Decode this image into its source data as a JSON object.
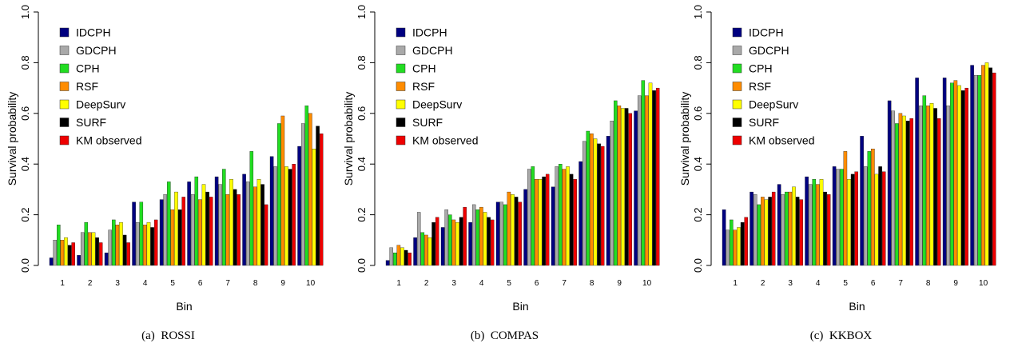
{
  "colors": {
    "IDCPH": "#000080",
    "GDCPH": "#a9a9a9",
    "CPH": "#22dd22",
    "RSF": "#ff8c00",
    "DeepSurv": "#ffff00",
    "SURF": "#000000",
    "KM observed": "#ee0000"
  },
  "chart_data": [
    {
      "type": "bar",
      "caption_label": "(a)",
      "caption_title": "ROSSI",
      "xlabel": "Bin",
      "ylabel": "Survival probability",
      "ylim": [
        0,
        1
      ],
      "yticks": [
        "0.0",
        "0.2",
        "0.4",
        "0.6",
        "0.8",
        "1.0"
      ],
      "legend_position": "top-left",
      "categories": [
        "1",
        "2",
        "3",
        "4",
        "5",
        "6",
        "7",
        "8",
        "9",
        "10"
      ],
      "series": [
        {
          "name": "IDCPH",
          "values": [
            0.03,
            0.04,
            0.05,
            0.25,
            0.26,
            0.33,
            0.35,
            0.36,
            0.43,
            0.47
          ]
        },
        {
          "name": "GDCPH",
          "values": [
            0.1,
            0.13,
            0.14,
            0.17,
            0.28,
            0.28,
            0.32,
            0.33,
            0.39,
            0.56
          ]
        },
        {
          "name": "CPH",
          "values": [
            0.16,
            0.17,
            0.18,
            0.25,
            0.33,
            0.35,
            0.38,
            0.45,
            0.56,
            0.63
          ]
        },
        {
          "name": "RSF",
          "values": [
            0.1,
            0.13,
            0.16,
            0.16,
            0.22,
            0.26,
            0.28,
            0.31,
            0.59,
            0.6
          ]
        },
        {
          "name": "DeepSurv",
          "values": [
            0.11,
            0.13,
            0.17,
            0.17,
            0.29,
            0.32,
            0.34,
            0.34,
            0.39,
            0.46
          ]
        },
        {
          "name": "SURF",
          "values": [
            0.08,
            0.11,
            0.12,
            0.15,
            0.22,
            0.29,
            0.3,
            0.32,
            0.38,
            0.55
          ]
        },
        {
          "name": "KM observed",
          "values": [
            0.09,
            0.09,
            0.09,
            0.18,
            0.27,
            0.27,
            0.28,
            0.24,
            0.4,
            0.52
          ]
        }
      ]
    },
    {
      "type": "bar",
      "caption_label": "(b)",
      "caption_title": "COMPAS",
      "xlabel": "Bin",
      "ylabel": "Survival probability",
      "ylim": [
        0,
        1
      ],
      "yticks": [
        "0.0",
        "0.2",
        "0.4",
        "0.6",
        "0.8",
        "1.0"
      ],
      "legend_position": "top-left",
      "categories": [
        "1",
        "2",
        "3",
        "4",
        "5",
        "6",
        "7",
        "8",
        "9",
        "10"
      ],
      "series": [
        {
          "name": "IDCPH",
          "values": [
            0.02,
            0.11,
            0.15,
            0.17,
            0.25,
            0.3,
            0.31,
            0.41,
            0.51,
            0.61
          ]
        },
        {
          "name": "GDCPH",
          "values": [
            0.07,
            0.21,
            0.22,
            0.24,
            0.25,
            0.38,
            0.39,
            0.49,
            0.57,
            0.67
          ]
        },
        {
          "name": "CPH",
          "values": [
            0.05,
            0.13,
            0.2,
            0.22,
            0.24,
            0.39,
            0.4,
            0.53,
            0.65,
            0.73
          ]
        },
        {
          "name": "RSF",
          "values": [
            0.08,
            0.12,
            0.18,
            0.23,
            0.29,
            0.34,
            0.38,
            0.52,
            0.63,
            0.67
          ]
        },
        {
          "name": "DeepSurv",
          "values": [
            0.07,
            0.11,
            0.17,
            0.21,
            0.28,
            0.34,
            0.39,
            0.5,
            0.62,
            0.72
          ]
        },
        {
          "name": "SURF",
          "values": [
            0.06,
            0.17,
            0.19,
            0.19,
            0.27,
            0.35,
            0.36,
            0.48,
            0.62,
            0.69
          ]
        },
        {
          "name": "KM observed",
          "values": [
            0.05,
            0.19,
            0.23,
            0.18,
            0.25,
            0.36,
            0.34,
            0.47,
            0.6,
            0.7
          ]
        }
      ]
    },
    {
      "type": "bar",
      "caption_label": "(c)",
      "caption_title": "KKBOX",
      "xlabel": "Bin",
      "ylabel": "Survival probability",
      "ylim": [
        0,
        1
      ],
      "yticks": [
        "0.0",
        "0.2",
        "0.4",
        "0.6",
        "0.8",
        "1.0"
      ],
      "legend_position": "top-left",
      "categories": [
        "1",
        "2",
        "3",
        "4",
        "5",
        "6",
        "7",
        "8",
        "9",
        "10"
      ],
      "series": [
        {
          "name": "IDCPH",
          "values": [
            0.22,
            0.29,
            0.32,
            0.35,
            0.39,
            0.51,
            0.65,
            0.74,
            0.74,
            0.79
          ]
        },
        {
          "name": "GDCPH",
          "values": [
            0.14,
            0.28,
            0.28,
            0.32,
            0.38,
            0.39,
            0.61,
            0.63,
            0.63,
            0.75
          ]
        },
        {
          "name": "CPH",
          "values": [
            0.18,
            0.24,
            0.29,
            0.34,
            0.38,
            0.45,
            0.56,
            0.67,
            0.72,
            0.75
          ]
        },
        {
          "name": "RSF",
          "values": [
            0.14,
            0.27,
            0.29,
            0.32,
            0.45,
            0.46,
            0.6,
            0.63,
            0.73,
            0.79
          ]
        },
        {
          "name": "DeepSurv",
          "values": [
            0.15,
            0.26,
            0.31,
            0.34,
            0.34,
            0.36,
            0.59,
            0.64,
            0.71,
            0.8
          ]
        },
        {
          "name": "SURF",
          "values": [
            0.17,
            0.27,
            0.27,
            0.29,
            0.36,
            0.39,
            0.57,
            0.62,
            0.69,
            0.78
          ]
        },
        {
          "name": "KM observed",
          "values": [
            0.19,
            0.29,
            0.26,
            0.28,
            0.37,
            0.37,
            0.58,
            0.58,
            0.7,
            0.76
          ]
        }
      ]
    }
  ]
}
